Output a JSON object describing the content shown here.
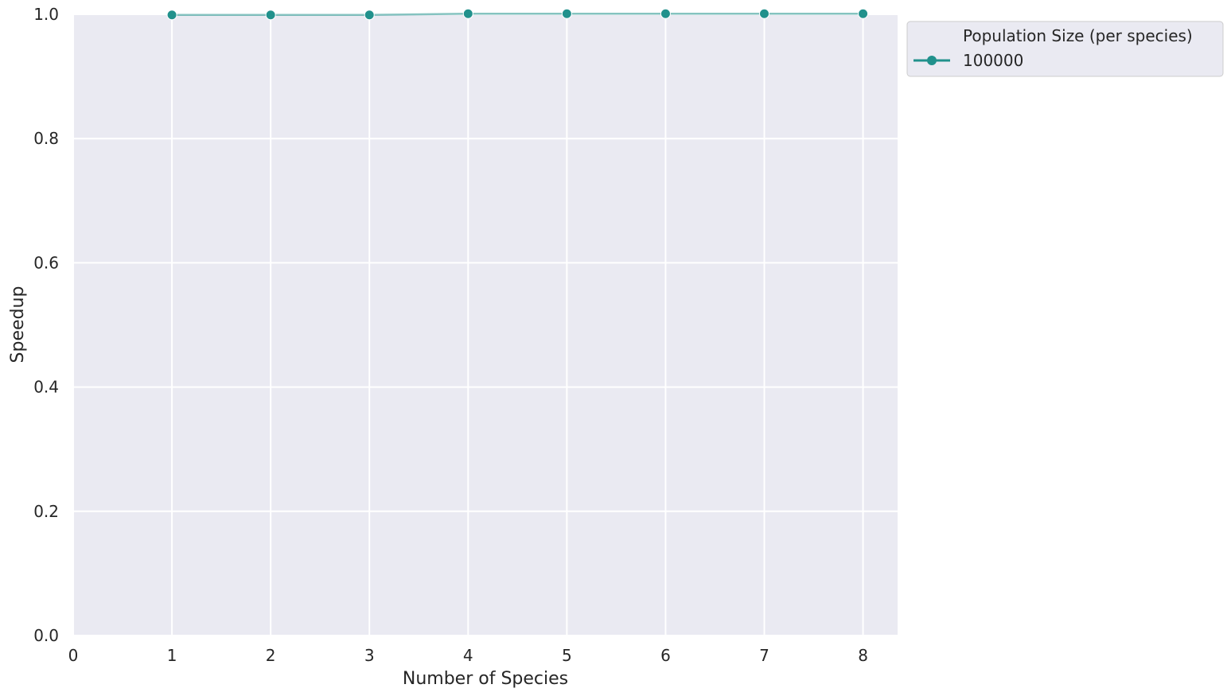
{
  "chart_data": {
    "type": "line",
    "x": [
      1,
      2,
      3,
      4,
      5,
      6,
      7,
      8
    ],
    "series": [
      {
        "name": "100000",
        "values": [
          0.999,
          0.999,
          0.999,
          1.001,
          1.001,
          1.001,
          1.001,
          1.001
        ]
      }
    ],
    "title": "",
    "xlabel": "Number of Species",
    "ylabel": "Speedup",
    "xlim": [
      0,
      8.35
    ],
    "ylim": [
      0.0,
      1.0
    ],
    "xticks": [
      "0",
      "1",
      "2",
      "3",
      "4",
      "5",
      "6",
      "7",
      "8"
    ],
    "yticks": [
      "0.0",
      "0.2",
      "0.4",
      "0.6",
      "0.8",
      "1.0"
    ],
    "grid": true,
    "legend": {
      "title": "Population Size (per species)",
      "placement": "outside-top-right"
    },
    "colors": {
      "series": "#21918c",
      "plot_bg": "#eaeaf2",
      "grid": "#ffffff",
      "text": "#262626"
    },
    "marker": "circle"
  }
}
